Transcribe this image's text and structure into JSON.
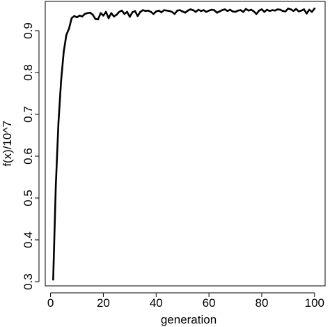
{
  "chart_data": {
    "type": "line",
    "title": "",
    "xlabel": "generation",
    "ylabel": "f(x)/10^7",
    "xlim": [
      -2,
      104
    ],
    "ylim": [
      0.29,
      0.97
    ],
    "xticks": [
      0,
      20,
      40,
      60,
      80,
      100
    ],
    "yticks": [
      0.3,
      0.4,
      0.5,
      0.6,
      0.7,
      0.8,
      0.9
    ],
    "grid": false,
    "legend": "none",
    "series": [
      {
        "color": "#000000",
        "x": [
          1,
          2,
          3,
          4,
          5,
          6,
          7,
          8,
          9,
          10,
          11,
          12,
          13,
          14,
          15,
          16,
          17,
          18,
          19,
          20,
          21,
          22,
          23,
          24,
          25,
          26,
          27,
          28,
          29,
          30,
          31,
          32,
          33,
          34,
          35,
          36,
          37,
          38,
          39,
          40,
          41,
          42,
          43,
          44,
          45,
          46,
          47,
          48,
          49,
          50,
          51,
          52,
          53,
          54,
          55,
          56,
          57,
          58,
          59,
          60,
          61,
          62,
          63,
          64,
          65,
          66,
          67,
          68,
          69,
          70,
          71,
          72,
          73,
          74,
          75,
          76,
          77,
          78,
          79,
          80,
          81,
          82,
          83,
          84,
          85,
          86,
          87,
          88,
          89,
          90,
          91,
          92,
          93,
          94,
          95,
          96,
          97,
          98,
          99,
          100
        ],
        "y": [
          0.305,
          0.53,
          0.68,
          0.78,
          0.85,
          0.89,
          0.905,
          0.93,
          0.935,
          0.932,
          0.936,
          0.934,
          0.94,
          0.942,
          0.943,
          0.938,
          0.928,
          0.927,
          0.942,
          0.936,
          0.945,
          0.93,
          0.942,
          0.934,
          0.938,
          0.945,
          0.948,
          0.94,
          0.945,
          0.933,
          0.944,
          0.947,
          0.935,
          0.945,
          0.949,
          0.947,
          0.948,
          0.945,
          0.94,
          0.946,
          0.948,
          0.944,
          0.949,
          0.948,
          0.947,
          0.945,
          0.94,
          0.948,
          0.949,
          0.946,
          0.943,
          0.948,
          0.951,
          0.949,
          0.945,
          0.95,
          0.947,
          0.949,
          0.945,
          0.948,
          0.95,
          0.949,
          0.943,
          0.946,
          0.949,
          0.951,
          0.947,
          0.95,
          0.946,
          0.945,
          0.948,
          0.949,
          0.945,
          0.952,
          0.948,
          0.95,
          0.946,
          0.94,
          0.948,
          0.951,
          0.945,
          0.95,
          0.947,
          0.949,
          0.948,
          0.951,
          0.95,
          0.947,
          0.946,
          0.953,
          0.951,
          0.947,
          0.952,
          0.946,
          0.948,
          0.951,
          0.941,
          0.95,
          0.945,
          0.953
        ]
      }
    ]
  }
}
